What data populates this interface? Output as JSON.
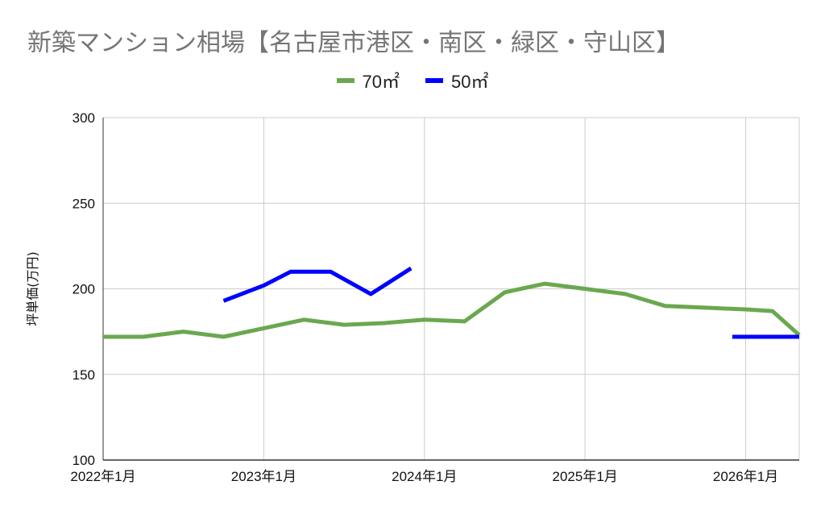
{
  "chart_data": {
    "type": "line",
    "title": "新築マンション相場【名古屋市港区・南区・緑区・守山区】",
    "ylabel": "坪単価(万円)",
    "xlabel": "",
    "ylim": [
      100,
      300
    ],
    "yticks": [
      100,
      150,
      200,
      250,
      300
    ],
    "xlim": [
      "2022-01",
      "2026-05"
    ],
    "xticks": [
      {
        "date": "2022-01",
        "label": "2022年1月"
      },
      {
        "date": "2023-01",
        "label": "2023年1月"
      },
      {
        "date": "2024-01",
        "label": "2024年1月"
      },
      {
        "date": "2025-01",
        "label": "2025年1月"
      },
      {
        "date": "2026-01",
        "label": "2026年1月"
      }
    ],
    "grid": true,
    "legend_position": "top",
    "series": [
      {
        "name": "70㎡",
        "color": "#6aa84f",
        "segments": [
          [
            [
              "2022-01",
              172
            ],
            [
              "2022-04",
              172
            ],
            [
              "2022-07",
              175
            ],
            [
              "2022-10",
              172
            ],
            [
              "2023-01",
              177
            ],
            [
              "2023-04",
              182
            ],
            [
              "2023-07",
              179
            ],
            [
              "2023-10",
              180
            ],
            [
              "2024-01",
              182
            ],
            [
              "2024-04",
              181
            ],
            [
              "2024-07",
              198
            ],
            [
              "2024-10",
              203
            ],
            [
              "2025-01",
              200
            ],
            [
              "2025-04",
              197
            ],
            [
              "2025-07",
              190
            ],
            [
              "2025-10",
              189
            ],
            [
              "2026-01",
              188
            ],
            [
              "2026-03",
              187
            ],
            [
              "2026-05",
              173
            ]
          ]
        ]
      },
      {
        "name": "50㎡",
        "color": "#0000ff",
        "segments": [
          [
            [
              "2022-10",
              193
            ],
            [
              "2023-01",
              202
            ],
            [
              "2023-03",
              210
            ],
            [
              "2023-06",
              210
            ],
            [
              "2023-09",
              197
            ],
            [
              "2023-12",
              212
            ]
          ],
          [
            [
              "2025-12",
              172
            ],
            [
              "2026-05",
              172
            ]
          ]
        ]
      }
    ]
  }
}
